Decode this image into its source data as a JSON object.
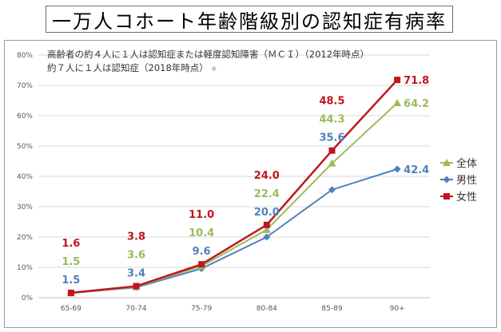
{
  "title": "一万人コホート年齢階級別の認知症有病率",
  "annotation_line1": "高齢者の約４人に１人は認知症または軽度認知障害（ＭＣＩ）（2012年時点）",
  "annotation_line2": "約７人に１人は認知症（2018年時点）",
  "annotation_mark": "※",
  "colors": {
    "all": "#9bbb59",
    "male": "#4f81bd",
    "female": "#c0151f",
    "grid": "#d9d9d9",
    "axis_text": "#595959"
  },
  "chart_data": {
    "type": "line",
    "categories": [
      "65-69",
      "70-74",
      "75-79",
      "80-84",
      "85-89",
      "90+"
    ],
    "ylim": [
      0,
      80
    ],
    "yticks": [
      "0%",
      "10%",
      "20%",
      "30%",
      "40%",
      "50%",
      "60%",
      "70%",
      "80%"
    ],
    "grid": true,
    "legend_position": "right",
    "series": [
      {
        "key": "all",
        "name": "全体",
        "marker": "triangle",
        "values": [
          1.5,
          3.6,
          10.4,
          22.4,
          44.3,
          64.2
        ]
      },
      {
        "key": "male",
        "name": "男性",
        "marker": "diamond",
        "values": [
          1.5,
          3.4,
          9.6,
          20.0,
          35.6,
          42.4
        ]
      },
      {
        "key": "female",
        "name": "女性",
        "marker": "square",
        "values": [
          1.6,
          3.8,
          11.0,
          24.0,
          48.5,
          71.8
        ]
      }
    ],
    "data_labels": {
      "all": [
        "1.5",
        "3.6",
        "10.4",
        "22.4",
        "44.3",
        "64.2"
      ],
      "male": [
        "1.5",
        "3.4",
        "9.6",
        "20.0",
        "35.6",
        "42.4"
      ],
      "female": [
        "1.6",
        "3.8",
        "11.0",
        "24.0",
        "48.5",
        "71.8"
      ]
    }
  }
}
